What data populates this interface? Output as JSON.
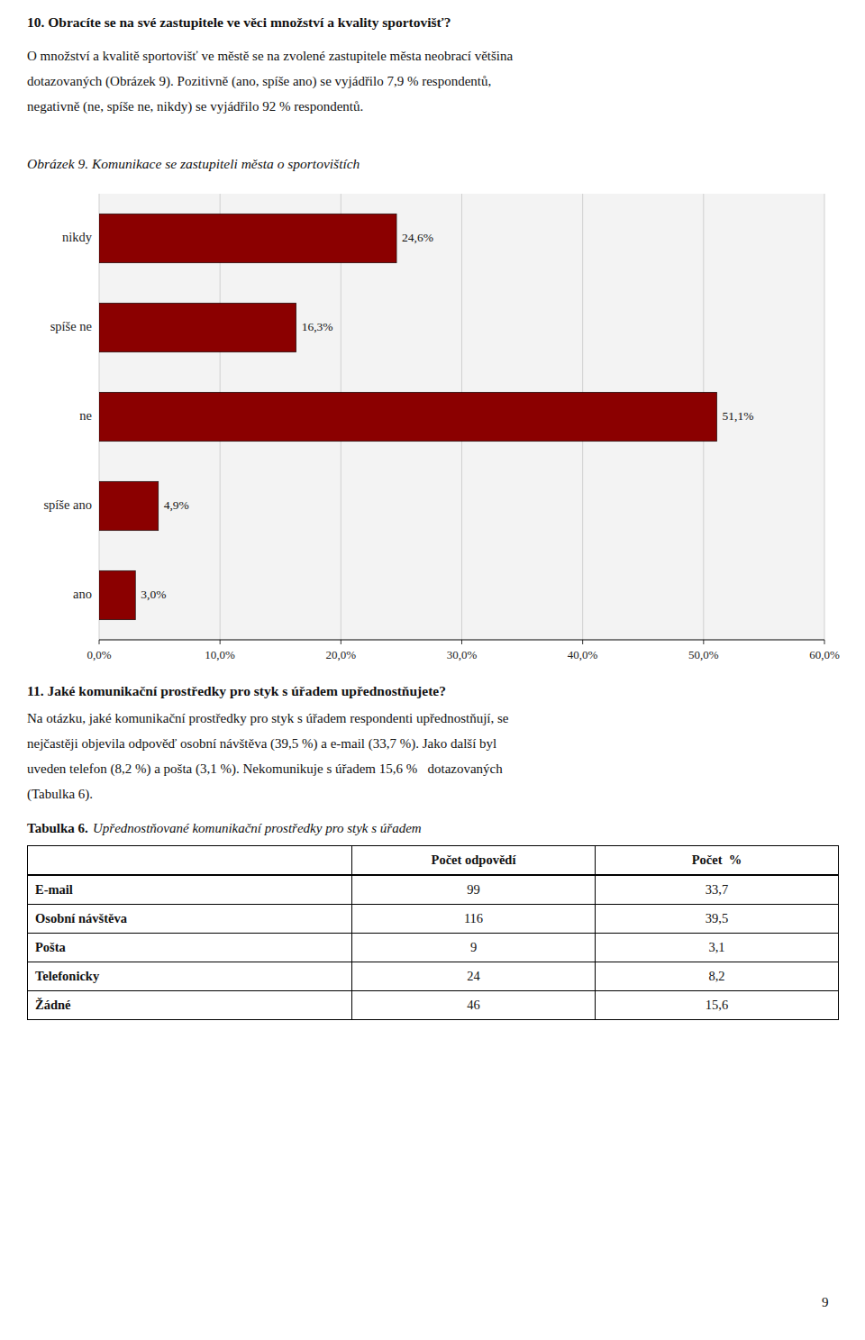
{
  "chart_data": {
    "type": "bar",
    "orientation": "horizontal",
    "title": "Obrázek 9. Komunikace se zastupiteli města o sportovištích",
    "categories": [
      "nikdy",
      "spíše ne",
      "ne",
      "spíše ano",
      "ano"
    ],
    "values": [
      24.6,
      16.3,
      51.1,
      4.9,
      3.0
    ],
    "value_labels": [
      "24,6%",
      "16,3%",
      "51,1%",
      "4,9%",
      "3,0%"
    ],
    "data_labels": true,
    "color": "#8B0000",
    "xlim": [
      0,
      60
    ],
    "xticks": [
      {
        "value": 0,
        "label": "0,0%"
      },
      {
        "value": 10,
        "label": "10,0%"
      },
      {
        "value": 20,
        "label": "20,0%"
      },
      {
        "value": 30,
        "label": "30,0%"
      },
      {
        "value": 40,
        "label": "40,0%"
      },
      {
        "value": 50,
        "label": "50,0%"
      },
      {
        "value": 60,
        "label": "60,0%"
      }
    ],
    "grid": true
  },
  "page": {
    "heading": "10. Obracíte se na své zastupitele ve věci množství a kvality sportovišť?",
    "paragraph": [
      "O množství a kvalitě sportovišť ve městě se na zvolené zastupitele města neobrací většina",
      "dotazovaných (Obrázek 9). Pozitivně (ano, spíše ano) se vyjádřilo 7,9 % respondentů,",
      "negativně (ne, spíše ne, nikdy) se vyjádřilo 92 % respondentů."
    ],
    "bottom_heading": "11. Jaké komunikační prostředky pro styk s úřadem upřednostňujete?",
    "bottom_paragraph": [
      "Na otázku, jaké komunikační prostředky pro styk s úřadem respondenti upřednostňují, se",
      "nejčastěji objevila odpověď osobní návštěva (39,5 %) a e-mail (33,7 %). Jako další byl",
      "uveden telefon (8,2 %) a pošta (3,1 %). Nekomunikuje s úřadem 15,6 %   dotazovaných",
      "(Tabulka 6)."
    ],
    "table_caption_label": "Tabulka 6.",
    "table_caption": "Upřednostňované komunikační prostředky pro styk s úřadem",
    "table": {
      "header": [
        "Počet odpovědí",
        "Počet  %"
      ],
      "rows": [
        [
          "E-mail",
          "99",
          "33,7"
        ],
        [
          "Osobní návštěva",
          "116",
          "39,5"
        ],
        [
          "Pošta",
          "9",
          "3,1"
        ],
        [
          "Telefonicky",
          "24",
          "8,2"
        ],
        [
          "Žádné",
          "46",
          "15,6"
        ]
      ]
    },
    "page_number": "9"
  }
}
